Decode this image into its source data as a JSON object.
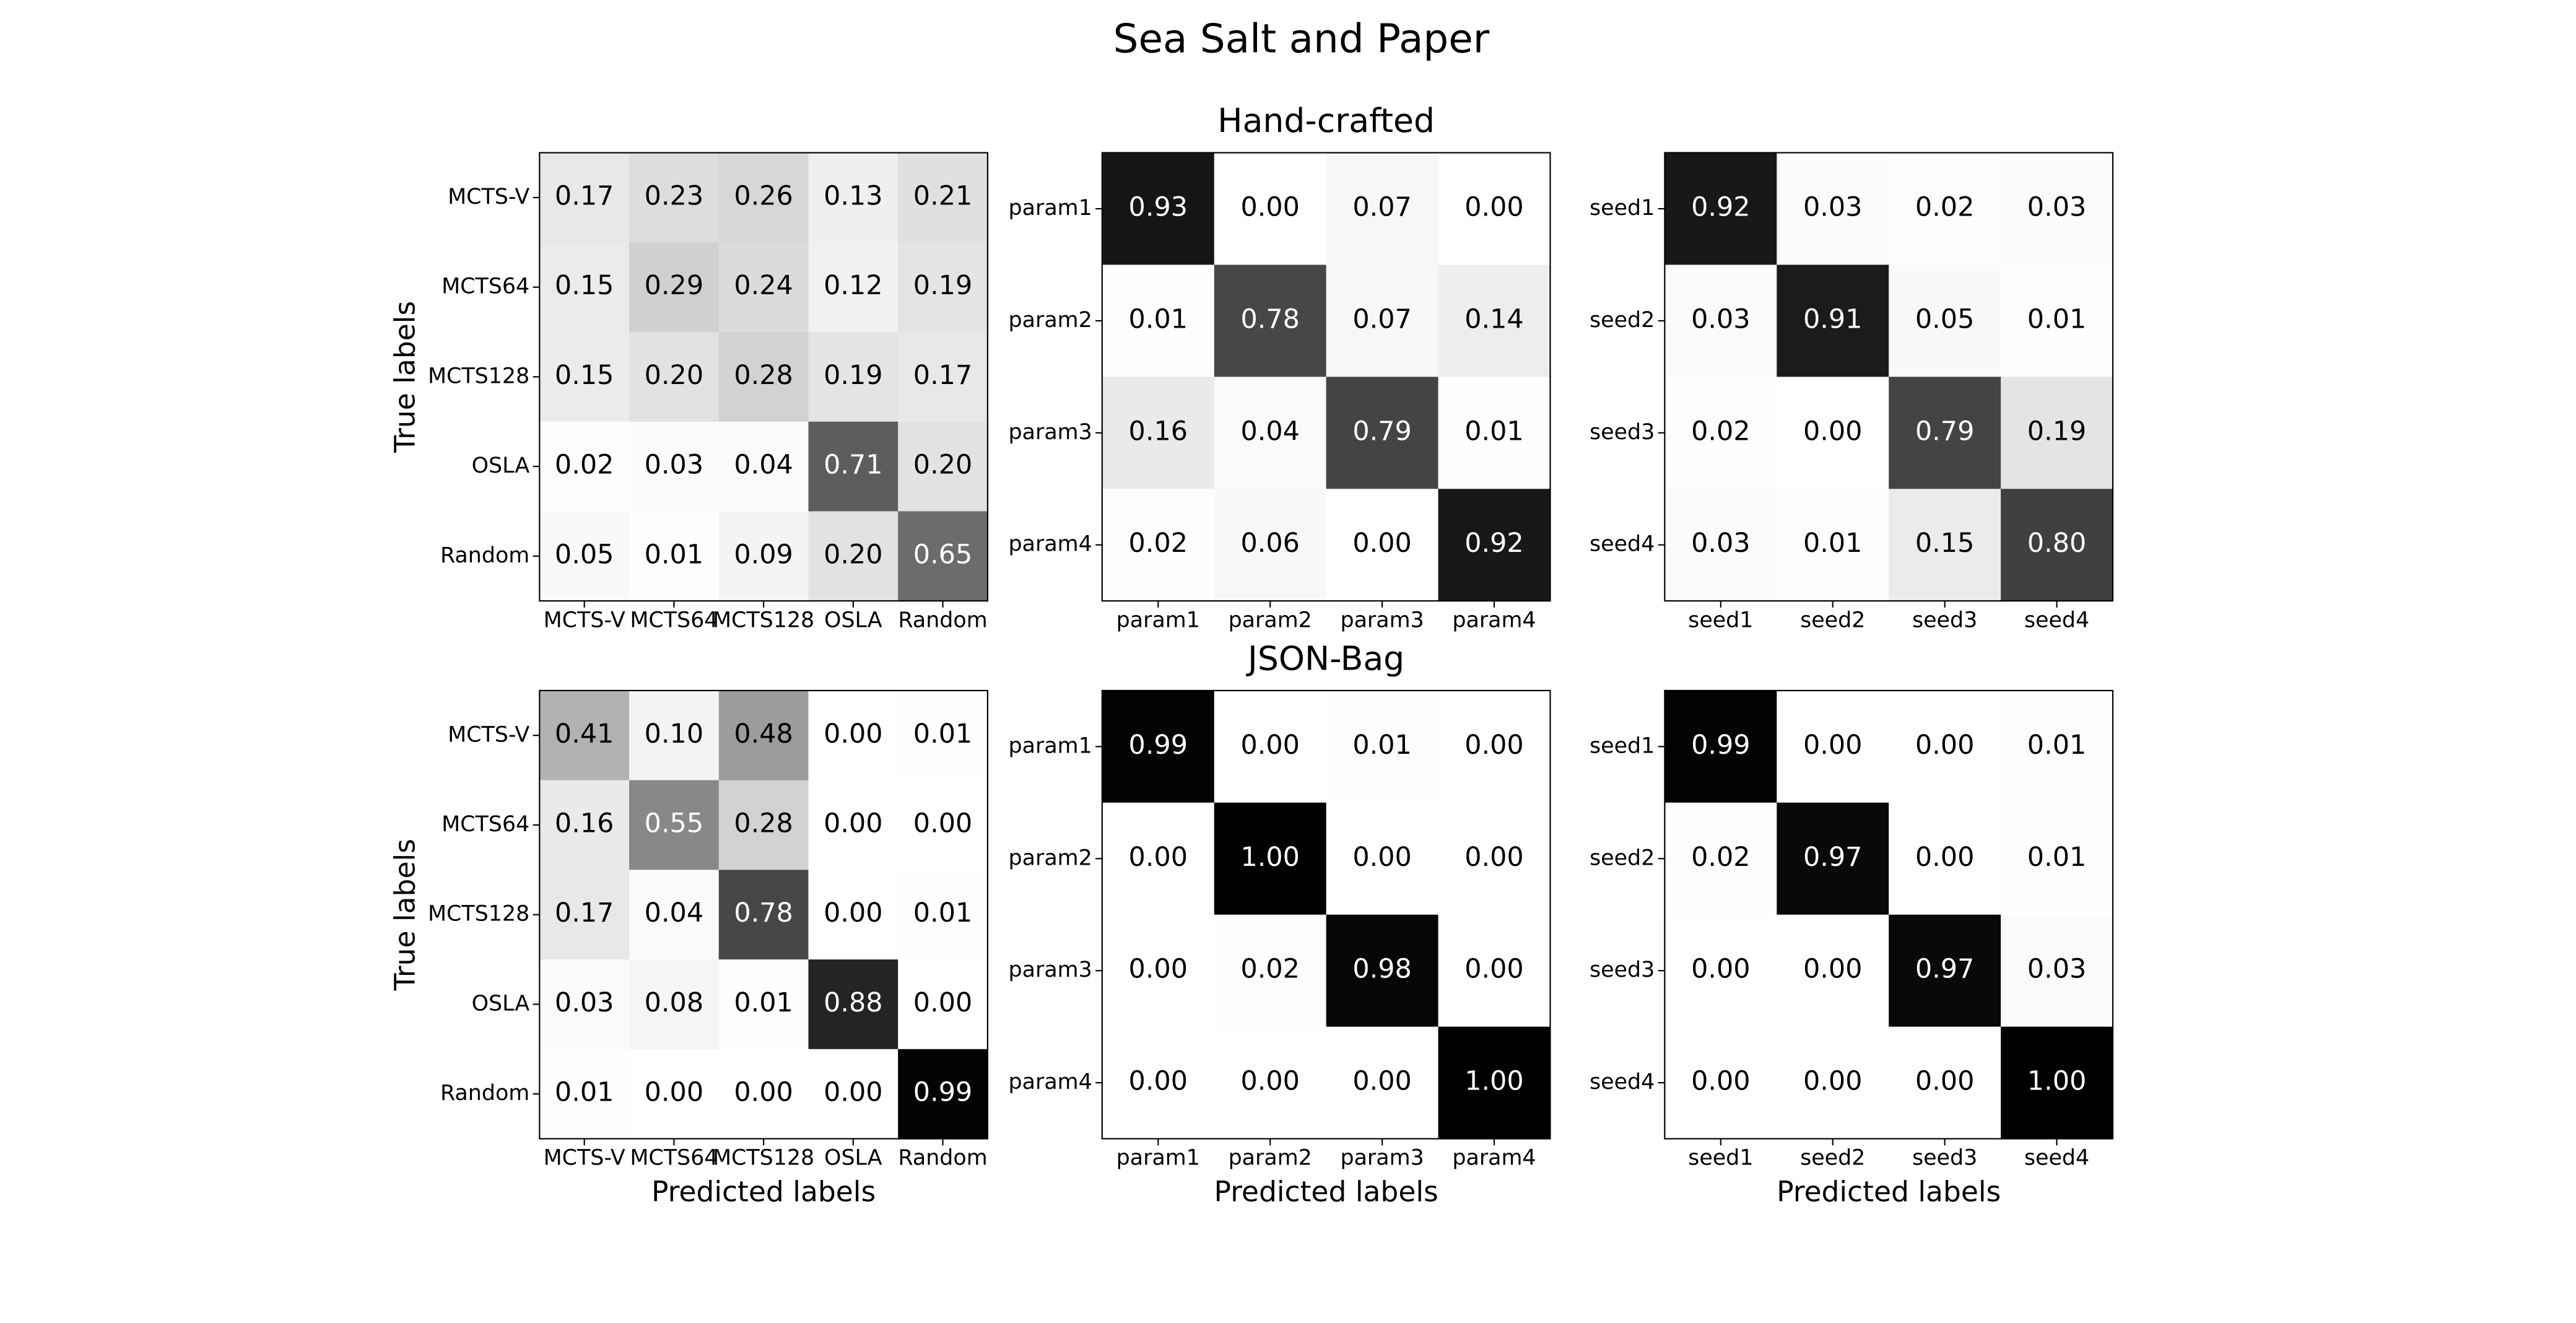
{
  "title": "Sea Salt and Paper",
  "chart_data": [
    {
      "type": "heatmap",
      "cmap": "Greys",
      "clim": [
        0,
        1
      ],
      "ylabel": "True labels",
      "x": [
        "MCTS-V",
        "MCTS64",
        "MCTS128",
        "OSLA",
        "Random"
      ],
      "y": [
        "MCTS-V",
        "MCTS64",
        "MCTS128",
        "OSLA",
        "Random"
      ],
      "values": [
        [
          0.17,
          0.23,
          0.26,
          0.13,
          0.21
        ],
        [
          0.15,
          0.29,
          0.24,
          0.12,
          0.19
        ],
        [
          0.15,
          0.2,
          0.28,
          0.19,
          0.17
        ],
        [
          0.02,
          0.03,
          0.04,
          0.71,
          0.2
        ],
        [
          0.05,
          0.01,
          0.09,
          0.2,
          0.65
        ]
      ],
      "value_labels": [
        [
          "0.17",
          "0.23",
          "0.26",
          "0.13",
          "0.21"
        ],
        [
          "0.15",
          "0.29",
          "0.24",
          "0.12",
          "0.19"
        ],
        [
          "0.15",
          "0.20",
          "0.28",
          "0.19",
          "0.17"
        ],
        [
          "0.02",
          "0.03",
          "0.04",
          "0.71",
          "0.20"
        ],
        [
          "0.05",
          "0.01",
          "0.09",
          "0.20",
          "0.65"
        ]
      ]
    },
    {
      "type": "heatmap",
      "cmap": "Greys",
      "clim": [
        0,
        1
      ],
      "title": "Hand-crafted",
      "x": [
        "param1",
        "param2",
        "param3",
        "param4"
      ],
      "y": [
        "param1",
        "param2",
        "param3",
        "param4"
      ],
      "values": [
        [
          0.93,
          0,
          0.07,
          0
        ],
        [
          0.01,
          0.78,
          0.07,
          0.14
        ],
        [
          0.16,
          0.04,
          0.79,
          0.01
        ],
        [
          0.02,
          0.06,
          0,
          0.92
        ]
      ],
      "value_labels": [
        [
          "0.93",
          "0.00",
          "0.07",
          "0.00"
        ],
        [
          "0.01",
          "0.78",
          "0.07",
          "0.14"
        ],
        [
          "0.16",
          "0.04",
          "0.79",
          "0.01"
        ],
        [
          "0.02",
          "0.06",
          "0.00",
          "0.92"
        ]
      ]
    },
    {
      "type": "heatmap",
      "cmap": "Greys",
      "clim": [
        0,
        1
      ],
      "x": [
        "seed1",
        "seed2",
        "seed3",
        "seed4"
      ],
      "y": [
        "seed1",
        "seed2",
        "seed3",
        "seed4"
      ],
      "values": [
        [
          0.92,
          0.03,
          0.02,
          0.03
        ],
        [
          0.03,
          0.91,
          0.05,
          0.01
        ],
        [
          0.02,
          0,
          0.79,
          0.19
        ],
        [
          0.03,
          0.01,
          0.15,
          0.8
        ]
      ],
      "value_labels": [
        [
          "0.92",
          "0.03",
          "0.02",
          "0.03"
        ],
        [
          "0.03",
          "0.91",
          "0.05",
          "0.01"
        ],
        [
          "0.02",
          "0.00",
          "0.79",
          "0.19"
        ],
        [
          "0.03",
          "0.01",
          "0.15",
          "0.80"
        ]
      ]
    },
    {
      "type": "heatmap",
      "cmap": "Greys",
      "clim": [
        0,
        1
      ],
      "ylabel": "True labels",
      "xlabel": "Predicted labels",
      "x": [
        "MCTS-V",
        "MCTS64",
        "MCTS128",
        "OSLA",
        "Random"
      ],
      "y": [
        "MCTS-V",
        "MCTS64",
        "MCTS128",
        "OSLA",
        "Random"
      ],
      "values": [
        [
          0.41,
          0.1,
          0.48,
          0,
          0.01
        ],
        [
          0.16,
          0.55,
          0.28,
          0,
          0
        ],
        [
          0.17,
          0.04,
          0.78,
          0,
          0.01
        ],
        [
          0.03,
          0.08,
          0.01,
          0.88,
          0
        ],
        [
          0.01,
          0,
          0,
          0,
          0.99
        ]
      ],
      "value_labels": [
        [
          "0.41",
          "0.10",
          "0.48",
          "0.00",
          "0.01"
        ],
        [
          "0.16",
          "0.55",
          "0.28",
          "0.00",
          "0.00"
        ],
        [
          "0.17",
          "0.04",
          "0.78",
          "0.00",
          "0.01"
        ],
        [
          "0.03",
          "0.08",
          "0.01",
          "0.88",
          "0.00"
        ],
        [
          "0.01",
          "0.00",
          "0.00",
          "0.00",
          "0.99"
        ]
      ]
    },
    {
      "type": "heatmap",
      "cmap": "Greys",
      "clim": [
        0,
        1
      ],
      "title": "JSON-Bag",
      "xlabel": "Predicted labels",
      "x": [
        "param1",
        "param2",
        "param3",
        "param4"
      ],
      "y": [
        "param1",
        "param2",
        "param3",
        "param4"
      ],
      "values": [
        [
          0.99,
          0,
          0.01,
          0
        ],
        [
          0,
          1,
          0,
          0
        ],
        [
          0,
          0.02,
          0.98,
          0
        ],
        [
          0,
          0,
          0,
          1
        ]
      ],
      "value_labels": [
        [
          "0.99",
          "0.00",
          "0.01",
          "0.00"
        ],
        [
          "0.00",
          "1.00",
          "0.00",
          "0.00"
        ],
        [
          "0.00",
          "0.02",
          "0.98",
          "0.00"
        ],
        [
          "0.00",
          "0.00",
          "0.00",
          "1.00"
        ]
      ]
    },
    {
      "type": "heatmap",
      "cmap": "Greys",
      "clim": [
        0,
        1
      ],
      "xlabel": "Predicted labels",
      "x": [
        "seed1",
        "seed2",
        "seed3",
        "seed4"
      ],
      "y": [
        "seed1",
        "seed2",
        "seed3",
        "seed4"
      ],
      "values": [
        [
          0.99,
          0,
          0,
          0.01
        ],
        [
          0.02,
          0.97,
          0,
          0.01
        ],
        [
          0,
          0,
          0.97,
          0.03
        ],
        [
          0,
          0,
          0,
          1
        ]
      ],
      "value_labels": [
        [
          "0.99",
          "0.00",
          "0.00",
          "0.01"
        ],
        [
          "0.02",
          "0.97",
          "0.00",
          "0.01"
        ],
        [
          "0.00",
          "0.00",
          "0.97",
          "0.03"
        ],
        [
          "0.00",
          "0.00",
          "0.00",
          "1.00"
        ]
      ]
    }
  ]
}
